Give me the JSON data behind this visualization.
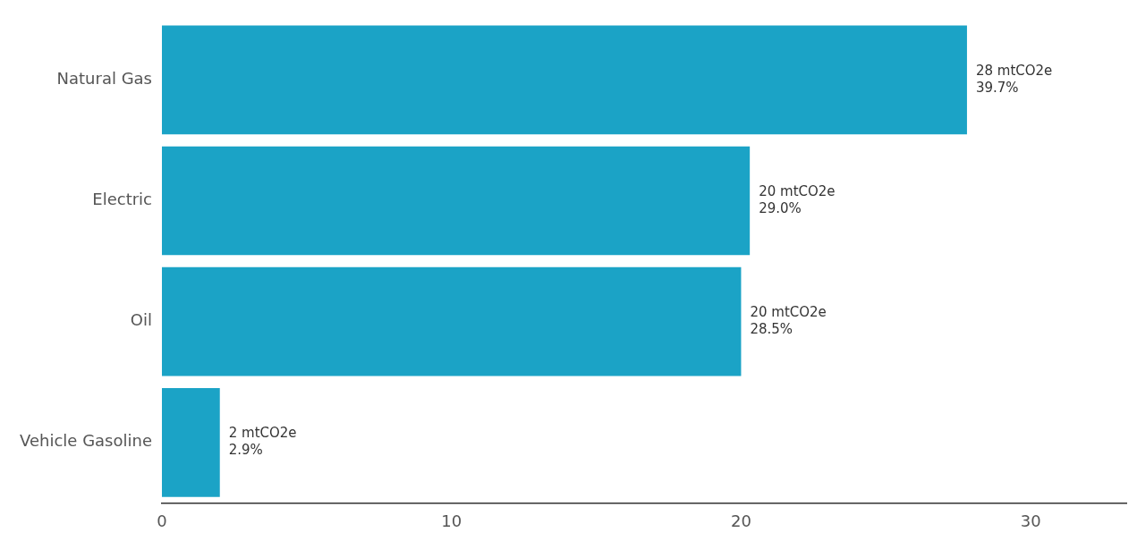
{
  "chart_data": {
    "type": "bar",
    "orientation": "horizontal",
    "categories": [
      "Natural Gas",
      "Electric",
      "Oil",
      "Vehicle Gasoline"
    ],
    "values": [
      27.8,
      20.3,
      20.0,
      2.0
    ],
    "color": "#1ba3c6",
    "value_labels": [
      "28 mtCO2e\n39.7%",
      "20 mtCO2e\n29.0%",
      "20 mtCO2e\n28.5%",
      "2 mtCO2e\n2.9%"
    ],
    "xlim": [
      0,
      33.3
    ],
    "xticks": [
      0,
      10,
      20,
      30
    ],
    "grid": false,
    "legend": false
  }
}
